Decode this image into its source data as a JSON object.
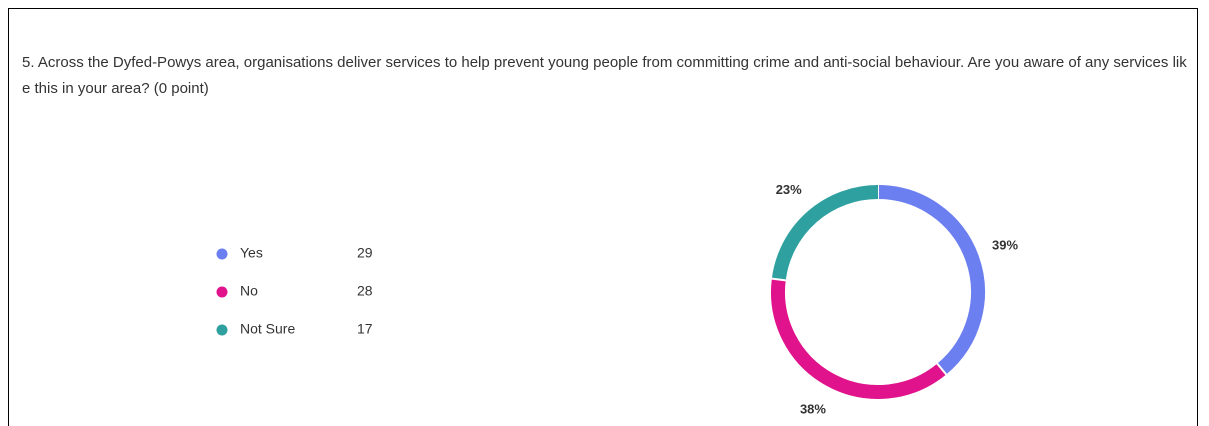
{
  "chart_data": {
    "type": "pie",
    "title": "5. Across the Dyfed-Powys area, organisations deliver services to help prevent young people from committing crime and anti-social behaviour. Are you aware of any services like this in your area? (0 point)",
    "categories": [
      "Yes",
      "No",
      "Not Sure"
    ],
    "counts": [
      29,
      28,
      17
    ],
    "values": [
      39,
      38,
      23
    ],
    "value_labels": [
      "39%",
      "38%",
      "23%"
    ],
    "colors": [
      "#6b7ff0",
      "#e0138c",
      "#2fa0a0"
    ],
    "donut": true
  }
}
